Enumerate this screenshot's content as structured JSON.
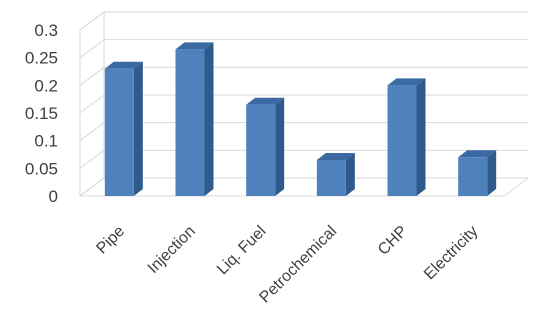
{
  "chart_data": {
    "type": "bar",
    "style": "3d-column",
    "categories": [
      "Pipe",
      "Injection",
      "Liq. Fuel",
      "Petrochemical",
      "CHP",
      "Electricity"
    ],
    "values": [
      0.23,
      0.265,
      0.165,
      0.065,
      0.2,
      0.07
    ],
    "yticks": [
      "0",
      "0.05",
      "0.1",
      "0.15",
      "0.2",
      "0.25",
      "0.3"
    ],
    "ylim": [
      0,
      0.3
    ],
    "title": "",
    "xlabel": "",
    "ylabel": "",
    "grid": true,
    "legend": "none",
    "colors": {
      "bar_front": "#4f81bd",
      "bar_side": "#2e5a8c",
      "bar_top": "#3b6aa3",
      "grid": "#d9d9d9",
      "text": "#404040"
    }
  }
}
